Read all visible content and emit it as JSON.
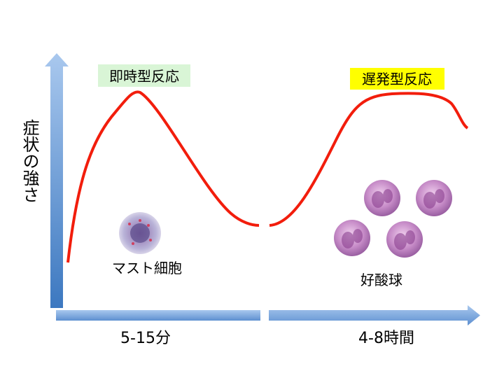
{
  "labels": {
    "early": "即時型反応",
    "late": "遅発型反応"
  },
  "y_axis": "症状の強さ",
  "cells": {
    "mast": "マスト細胞",
    "eosinophil": "好酸球"
  },
  "x_axis": {
    "early": "5-15分",
    "late": "4-8時間"
  }
}
